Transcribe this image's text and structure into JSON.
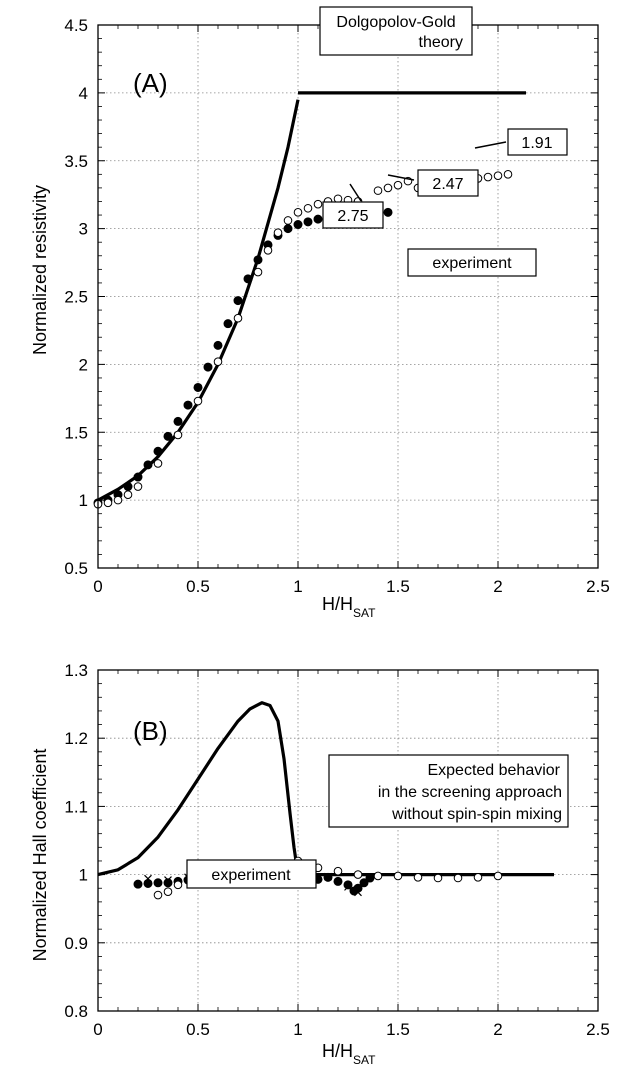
{
  "chart_data": [
    {
      "id": "A",
      "type": "scatter",
      "panel_label": "(A)",
      "xlabel": "H/H",
      "xlabel_sub": "SAT",
      "ylabel": "Normalized  resistivity",
      "xlim": [
        0,
        2.5
      ],
      "ylim": [
        0.5,
        4.5
      ],
      "xticks": [
        "0",
        "0.5",
        "1",
        "1.5",
        "2",
        "2.5"
      ],
      "yticks": [
        "0.5",
        "1",
        "1.5",
        "2",
        "2.5",
        "3",
        "3.5",
        "4",
        "4.5"
      ],
      "grid": true,
      "series": [
        {
          "kind": "line",
          "x": [
            0,
            0.1,
            0.2,
            0.3,
            0.4,
            0.5,
            0.6,
            0.7,
            0.8,
            0.9,
            0.95,
            1.0
          ],
          "y": [
            1.0,
            1.08,
            1.18,
            1.32,
            1.5,
            1.72,
            2.0,
            2.34,
            2.78,
            3.3,
            3.6,
            3.95
          ]
        },
        {
          "kind": "line",
          "x": [
            1.0,
            2.14
          ],
          "y": [
            4.0,
            4.0
          ]
        },
        {
          "kind": "filled",
          "x": [
            0,
            0.05,
            0.1,
            0.15,
            0.2,
            0.25,
            0.3,
            0.35,
            0.4,
            0.45,
            0.5,
            0.55,
            0.6,
            0.65,
            0.7,
            0.75,
            0.8,
            0.85,
            0.9,
            0.95,
            1.0,
            1.05,
            1.1,
            1.15,
            1.2,
            1.25,
            1.3,
            1.35,
            1.4,
            1.45
          ],
          "y": [
            0.98,
            1.0,
            1.04,
            1.1,
            1.17,
            1.26,
            1.36,
            1.47,
            1.58,
            1.7,
            1.83,
            1.98,
            2.14,
            2.3,
            2.47,
            2.63,
            2.77,
            2.88,
            2.95,
            3.0,
            3.03,
            3.05,
            3.07,
            3.08,
            3.1,
            3.1,
            3.12,
            3.13,
            3.12,
            3.12
          ]
        },
        {
          "kind": "open",
          "x": [
            0,
            0.05,
            0.1,
            0.15,
            0.2,
            0.3,
            0.4,
            0.5,
            0.6,
            0.7,
            0.8,
            0.85,
            0.9,
            0.95,
            1.0,
            1.05,
            1.1,
            1.15,
            1.2,
            1.25,
            1.3,
            1.35,
            1.4,
            1.45,
            1.5,
            1.55,
            1.6,
            1.65,
            1.7,
            1.75,
            1.8,
            1.85,
            1.9,
            1.95,
            2.0,
            2.05
          ],
          "y": [
            0.97,
            0.98,
            1.0,
            1.04,
            1.1,
            1.27,
            1.48,
            1.73,
            2.02,
            2.34,
            2.68,
            2.84,
            2.97,
            3.06,
            3.12,
            3.15,
            3.18,
            3.2,
            3.22,
            3.21,
            3.2,
            3.12,
            3.28,
            3.3,
            3.32,
            3.35,
            3.3,
            3.32,
            3.34,
            3.3,
            3.35,
            3.36,
            3.37,
            3.38,
            3.39,
            3.4
          ]
        }
      ],
      "annotations": [
        {
          "text": "1.91",
          "x": 2.05,
          "y": 3.41
        },
        {
          "text": "2.47",
          "x": 1.42,
          "y": 3.1
        },
        {
          "text": "2.75",
          "x": 1.33,
          "y": 3.03
        },
        {
          "text": "experiment"
        }
      ],
      "legend_box": [
        "Dolgopolov-Gold",
        "theory"
      ]
    },
    {
      "id": "B",
      "type": "scatter",
      "panel_label": "(B)",
      "xlabel": "H/H",
      "xlabel_sub": "SAT",
      "ylabel": "Normalized   Hall  coefficient",
      "xlim": [
        0,
        2.5
      ],
      "ylim": [
        0.8,
        1.3
      ],
      "xticks": [
        "0",
        "0.5",
        "1",
        "1.5",
        "2",
        "2.5"
      ],
      "yticks": [
        "0.8",
        "0.9",
        "1",
        "1.1",
        "1.2",
        "1.3"
      ],
      "grid": true,
      "series": [
        {
          "kind": "line",
          "x": [
            0,
            0.1,
            0.2,
            0.3,
            0.4,
            0.5,
            0.6,
            0.7,
            0.76,
            0.82,
            0.86,
            0.9,
            0.93,
            0.96,
            0.98,
            1.0,
            2.28
          ],
          "y": [
            1.0,
            1.007,
            1.025,
            1.055,
            1.095,
            1.14,
            1.185,
            1.225,
            1.243,
            1.252,
            1.248,
            1.225,
            1.17,
            1.09,
            1.04,
            1.0,
            1.0
          ]
        },
        {
          "kind": "filled",
          "x": [
            0.2,
            0.25,
            0.3,
            0.35,
            0.4,
            0.45,
            0.5,
            0.55,
            0.6,
            0.65,
            0.7,
            0.75,
            0.8,
            0.85,
            0.9,
            0.95,
            1.0,
            1.05,
            1.1,
            1.15,
            1.2,
            1.25,
            1.28,
            1.3,
            1.33,
            1.36
          ],
          "y": [
            0.986,
            0.987,
            0.988,
            0.988,
            0.99,
            0.992,
            0.993,
            0.994,
            0.994,
            0.993,
            0.992,
            0.99,
            0.992,
            0.996,
            1.0,
            1.004,
            1.005,
            0.998,
            0.993,
            0.996,
            0.99,
            0.985,
            0.976,
            0.98,
            0.988,
            0.995
          ]
        },
        {
          "kind": "open",
          "x": [
            0.3,
            0.35,
            0.4,
            0.5,
            0.6,
            0.7,
            0.8,
            0.9,
            1.0,
            1.05,
            1.1,
            1.2,
            1.3,
            1.4,
            1.5,
            1.6,
            1.7,
            1.8,
            1.9,
            2.0
          ],
          "y": [
            0.97,
            0.975,
            0.985,
            0.99,
            0.995,
            0.99,
            1.0,
            1.005,
            1.02,
            1.015,
            1.01,
            1.005,
            1.0,
            0.998,
            0.998,
            0.996,
            0.995,
            0.995,
            0.996,
            0.998
          ]
        },
        {
          "kind": "cross",
          "x": [
            0.25,
            0.35,
            0.45,
            0.55,
            0.65,
            0.75,
            0.85,
            0.95,
            1.05,
            1.15,
            1.25,
            1.3
          ],
          "y": [
            0.994,
            0.992,
            0.996,
            0.998,
            0.997,
            0.998,
            1.003,
            1.006,
            0.998,
            0.997,
            0.982,
            0.974
          ]
        }
      ],
      "annotations": [
        {
          "text": "experiment"
        }
      ],
      "legend_box": [
        "Expected behavior",
        "in the screening approach",
        "without spin-spin mixing"
      ]
    }
  ]
}
